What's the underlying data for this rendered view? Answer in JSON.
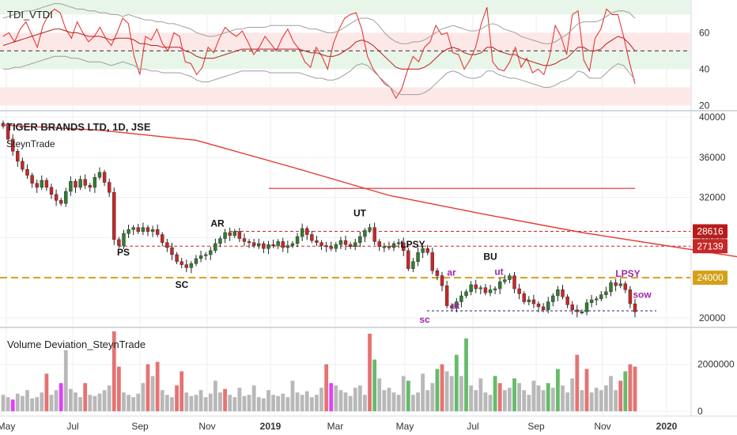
{
  "colors": {
    "background": "#ffffff",
    "grid": "#eceff2",
    "separator": "#d4d8de",
    "axis_text": "#333333",
    "candle_up": "#2e7d32",
    "candle_down": "#c62828",
    "wick": "#222222",
    "ma_line": "#e53935",
    "upper_band_fill": "#e8f5e9",
    "mid_green_fill": "#e8f5e9",
    "mid_red_fill": "#fde8e8",
    "lower_red_fill": "#fde8e8",
    "band_line": "#9e9e9e",
    "rsi_line": "#e53935",
    "signal_line": "#b71c1c",
    "level_line": "#555555",
    "support_gold": "#d4a017",
    "resistance_red": "#d32f2f",
    "dotted_red": "#c62828",
    "dotted_blue": "#1a237e",
    "label_black": "#111111",
    "label_purple": "#9c27b0",
    "badge_dark_red": "#b71c1c",
    "badge_red": "#c62828",
    "badge_gold": "#d4a017",
    "vol_gray": "#b8b8b8",
    "vol_red": "#e57373",
    "vol_green": "#66bb6a",
    "vol_magenta": "#e040fb"
  },
  "chart_data": [
    {
      "type": "line",
      "panel": "indicator",
      "title": "TDI_VTDI",
      "ylim": [
        18,
        78
      ],
      "y_ticks": [
        20,
        40,
        60
      ],
      "zones": [
        {
          "from": 70,
          "to": 78,
          "color": "green"
        },
        {
          "from": 50,
          "to": 60,
          "color": "red"
        },
        {
          "from": 40,
          "to": 50,
          "color": "green"
        },
        {
          "from": 20,
          "to": 30,
          "color": "red"
        }
      ],
      "reference_level": 50,
      "series": [
        {
          "values": [
            58,
            60,
            55,
            62,
            66,
            59,
            52,
            64,
            70,
            73,
            71,
            62,
            57,
            66,
            60,
            55,
            58,
            63,
            57,
            53,
            60,
            68,
            65,
            47,
            37,
            58,
            56,
            62,
            54,
            50,
            60,
            58,
            44,
            43,
            37,
            41,
            52,
            49,
            57,
            63,
            60,
            58,
            61,
            55,
            48,
            52,
            58,
            54,
            50,
            57,
            62,
            55,
            51,
            44,
            41,
            52,
            47,
            40,
            54,
            62,
            68,
            70,
            71,
            62,
            47,
            40,
            36,
            32,
            30,
            24,
            29,
            39,
            47,
            44,
            52,
            55,
            64,
            59,
            60,
            49,
            48,
            40,
            45,
            52,
            65,
            74,
            44,
            40,
            39,
            44,
            52,
            41,
            46,
            38,
            40,
            37,
            47,
            64,
            58,
            48,
            70,
            72,
            45,
            39,
            57,
            62,
            73,
            70,
            70,
            58,
            44,
            32
          ]
        },
        {
          "values": [
            53,
            54,
            55,
            56,
            57,
            58,
            59,
            60,
            61,
            62,
            62,
            61,
            60,
            60,
            59,
            58,
            58,
            58,
            57,
            56,
            57,
            57,
            57,
            56,
            54,
            54,
            53,
            53,
            52,
            52,
            52,
            52,
            50,
            49,
            47,
            46,
            46,
            46,
            47,
            48,
            49,
            50,
            51,
            51,
            51,
            51,
            51,
            51,
            51,
            51,
            51,
            51,
            51,
            50,
            49,
            49,
            48,
            47,
            47,
            48,
            50,
            52,
            55,
            56,
            55,
            53,
            50,
            47,
            44,
            41,
            40,
            40,
            40,
            40,
            41,
            43,
            46,
            49,
            51,
            52,
            51,
            49,
            48,
            48,
            49,
            52,
            52,
            50,
            49,
            48,
            48,
            46,
            45,
            44,
            43,
            42,
            42,
            43,
            45,
            46,
            49,
            52,
            52,
            50,
            50,
            51,
            54,
            56,
            58,
            57,
            54,
            50
          ]
        },
        {
          "values": [
            68,
            69,
            70,
            71,
            72,
            72,
            73,
            74,
            75,
            76,
            76,
            75,
            74,
            73,
            73,
            72,
            72,
            71,
            71,
            70,
            70,
            69,
            70,
            69,
            68,
            67,
            67,
            66,
            66,
            65,
            65,
            64,
            63,
            62,
            60,
            59,
            58,
            58,
            59,
            60,
            61,
            62,
            62,
            63,
            63,
            63,
            63,
            64,
            64,
            64,
            64,
            64,
            64,
            63,
            62,
            62,
            61,
            60,
            60,
            61,
            63,
            65,
            67,
            68,
            68,
            67,
            64,
            60,
            57,
            55,
            54,
            54,
            55,
            55,
            56,
            58,
            60,
            62,
            63,
            64,
            63,
            62,
            61,
            61,
            62,
            64,
            65,
            64,
            62,
            61,
            60,
            58,
            57,
            56,
            55,
            54,
            54,
            55,
            57,
            59,
            62,
            65,
            66,
            66,
            66,
            67,
            69,
            71,
            72,
            72,
            71,
            68
          ]
        },
        {
          "values": [
            40,
            40,
            41,
            41,
            42,
            43,
            44,
            45,
            46,
            47,
            47,
            47,
            46,
            46,
            45,
            44,
            44,
            44,
            43,
            42,
            43,
            44,
            43,
            42,
            40,
            40,
            39,
            39,
            38,
            38,
            38,
            38,
            37,
            36,
            34,
            33,
            33,
            34,
            35,
            36,
            37,
            38,
            39,
            39,
            39,
            39,
            39,
            38,
            38,
            38,
            38,
            38,
            38,
            37,
            36,
            35,
            35,
            34,
            34,
            35,
            37,
            39,
            42,
            43,
            42,
            39,
            36,
            33,
            30,
            27,
            26,
            26,
            26,
            26,
            27,
            29,
            32,
            35,
            38,
            39,
            38,
            36,
            35,
            35,
            36,
            39,
            39,
            37,
            36,
            35,
            35,
            34,
            33,
            32,
            31,
            30,
            30,
            31,
            33,
            34,
            36,
            39,
            38,
            35,
            35,
            35,
            38,
            41,
            43,
            42,
            38,
            34
          ]
        }
      ]
    },
    {
      "type": "candlestick",
      "panel": "price",
      "title": "TIGER BRANDS LTD, 1D, JSE",
      "subtitle": "SteynTrade",
      "ylim": [
        19200,
        40400
      ],
      "y_ticks": [
        20000,
        24000,
        28000,
        32000,
        36000,
        40000
      ],
      "x_ticks": [
        "May",
        "Jul",
        "Sep",
        "Nov",
        "2019",
        "Mar",
        "May",
        "Jul",
        "Sep",
        "Nov",
        "2020"
      ],
      "close": [
        39100,
        37800,
        36600,
        35600,
        34800,
        34200,
        33400,
        33000,
        33700,
        33000,
        32300,
        31700,
        31400,
        32600,
        33600,
        33000,
        33800,
        33200,
        33000,
        34000,
        34500,
        33500,
        32500,
        27800,
        27200,
        28400,
        28800,
        29000,
        28600,
        29000,
        28600,
        28800,
        28300,
        27500,
        27000,
        26300,
        25600,
        25300,
        25000,
        25400,
        25900,
        26200,
        26300,
        26700,
        27400,
        27900,
        28500,
        28200,
        28600,
        27900,
        27600,
        27500,
        27200,
        27400,
        26900,
        27300,
        27200,
        27600,
        27000,
        27200,
        27400,
        28100,
        28900,
        28300,
        27700,
        27500,
        27200,
        27100,
        26900,
        27300,
        27700,
        27300,
        27100,
        27500,
        28100,
        28700,
        29000,
        27600,
        27100,
        27100,
        27000,
        27400,
        27500,
        26700,
        24900,
        25600,
        26500,
        26900,
        26500,
        24700,
        24200,
        23200,
        21200,
        21000,
        21600,
        22200,
        22600,
        23300,
        22900,
        23000,
        22500,
        22800,
        22900,
        23600,
        23800,
        24200,
        22900,
        22400,
        21600,
        21800,
        21400,
        21100,
        20800,
        21600,
        22200,
        22800,
        22100,
        21300,
        20800,
        20600,
        20600,
        21500,
        21800,
        21900,
        22300,
        22600,
        23500,
        23200,
        23400,
        22800,
        21400,
        20600
      ],
      "moving_average": [
        {
          "x": 0,
          "y": 39200
        },
        {
          "x": 20,
          "y": 38700
        },
        {
          "x": 40,
          "y": 37700
        },
        {
          "x": 60,
          "y": 35000
        },
        {
          "x": 80,
          "y": 32200
        },
        {
          "x": 100,
          "y": 30300
        },
        {
          "x": 120,
          "y": 28500
        },
        {
          "x": 140,
          "y": 27000
        },
        {
          "x": 160,
          "y": 25500
        },
        {
          "x": 180,
          "y": 24300
        },
        {
          "x": 190,
          "y": 23600
        }
      ],
      "levels": [
        {
          "price": 24000,
          "style": "dashed",
          "color": "gold"
        },
        {
          "price": 28616,
          "style": "dotted",
          "color": "red"
        },
        {
          "price": 27139,
          "style": "dotted",
          "color": "red"
        },
        {
          "price": 32900,
          "style": "solid",
          "color": "red"
        },
        {
          "price": 20700,
          "style": "dotted",
          "color": "blue"
        }
      ],
      "price_badges": [
        "28616",
        "27139",
        "24000"
      ],
      "annotations": [
        {
          "text": "PS",
          "price": 26200
        },
        {
          "text": "SC",
          "price": 23000
        },
        {
          "text": "AR",
          "price": 29100
        },
        {
          "text": "UT",
          "price": 30100
        },
        {
          "text": "LPSY",
          "price": 27000
        },
        {
          "text": "BU",
          "price": 25800
        },
        {
          "text": "ar",
          "price": 24200
        },
        {
          "text": "ut",
          "price": 24300
        },
        {
          "text": "st",
          "price": 20900
        },
        {
          "text": "sc",
          "price": 19500
        },
        {
          "text": "LPSY",
          "price": 24100
        },
        {
          "text": "sow",
          "price": 22000
        }
      ]
    },
    {
      "type": "bar",
      "panel": "volume",
      "title": "Volume Deviation_SteynTrade",
      "ylim": [
        0,
        3500000
      ],
      "y_ticks": [
        0,
        2000000
      ],
      "y_tick_labels": [
        "0",
        "2000000"
      ],
      "values": [
        700000,
        600000,
        500000,
        750000,
        650000,
        900000,
        550000,
        600000,
        800000,
        1600000,
        700000,
        900000,
        1200000,
        2600000,
        950000,
        800000,
        600000,
        1200000,
        700000,
        650000,
        750000,
        900000,
        1100000,
        3400000,
        1900000,
        800000,
        700000,
        600000,
        750000,
        1200000,
        2000000,
        1500000,
        2100000,
        900000,
        700000,
        600000,
        1100000,
        1700000,
        800000,
        650000,
        700000,
        900000,
        600000,
        750000,
        1300000,
        800000,
        950000,
        700000,
        600000,
        1000000,
        650000,
        700000,
        1100000,
        600000,
        550000,
        900000,
        700000,
        650000,
        750000,
        600000,
        1300000,
        800000,
        700000,
        850000,
        600000,
        700000,
        1000000,
        2000000,
        1200000,
        1100000,
        900000,
        800000,
        650000,
        1000000,
        1100000,
        700000,
        3300000,
        2200000,
        1400000,
        900000,
        1000000,
        800000,
        700000,
        1500000,
        1300000,
        700000,
        800000,
        1600000,
        900000,
        1200000,
        1800000,
        2000000,
        1700000,
        1500000,
        2400000,
        1500000,
        3100000,
        1100000,
        900000,
        1400000,
        800000,
        700000,
        1500000,
        1200000,
        900000,
        1000000,
        1400000,
        1200000,
        900000,
        700000,
        1300000,
        1100000,
        900000,
        1200000,
        1000000,
        1800000,
        1100000,
        800000,
        1400000,
        2400000,
        900000,
        1800000,
        800000,
        1000000,
        900000,
        1100000,
        1500000,
        900000,
        1300000,
        1700000,
        2000000,
        1900000
      ],
      "colors": [
        "g",
        "g",
        "m",
        "g",
        "g",
        "g",
        "g",
        "g",
        "g",
        "r",
        "g",
        "g",
        "m",
        "g",
        "g",
        "g",
        "g",
        "r",
        "g",
        "g",
        "g",
        "g",
        "g",
        "r",
        "r",
        "g",
        "g",
        "g",
        "g",
        "g",
        "r",
        "g",
        "r",
        "g",
        "g",
        "g",
        "r",
        "r",
        "g",
        "g",
        "g",
        "g",
        "g",
        "g",
        "g",
        "g",
        "r",
        "g",
        "g",
        "g",
        "g",
        "g",
        "g",
        "g",
        "g",
        "g",
        "g",
        "g",
        "g",
        "g",
        "g",
        "g",
        "g",
        "g",
        "g",
        "g",
        "g",
        "r",
        "m",
        "g",
        "g",
        "g",
        "g",
        "g",
        "g",
        "g",
        "r",
        "G",
        "g",
        "g",
        "g",
        "g",
        "g",
        "g",
        "G",
        "g",
        "g",
        "g",
        "g",
        "g",
        "G",
        "r",
        "g",
        "g",
        "G",
        "g",
        "G",
        "g",
        "g",
        "g",
        "g",
        "g",
        "G",
        "r",
        "g",
        "g",
        "G",
        "g",
        "g",
        "g",
        "g",
        "g",
        "g",
        "G",
        "g",
        "G",
        "g",
        "g",
        "g",
        "r",
        "g",
        "r",
        "g",
        "g",
        "g",
        "g",
        "g",
        "g",
        "r",
        "G",
        "r",
        "r"
      ]
    }
  ]
}
